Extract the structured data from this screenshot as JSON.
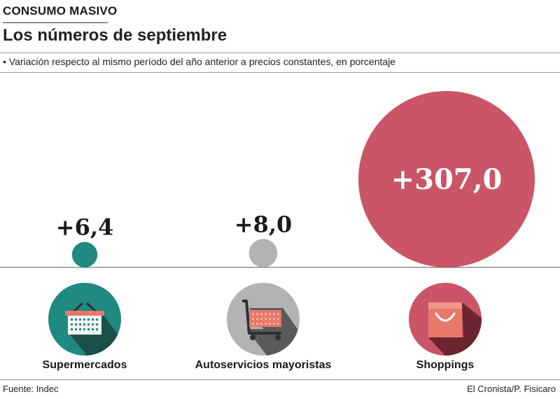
{
  "header": {
    "kicker": "CONSUMO MASIVO",
    "title": "Los números de septiembre",
    "subtitle": "• Variación respecto al mismo período del año anterior a precios constantes, en porcentaje"
  },
  "footer": {
    "source": "Fuente: Indec",
    "credit": "El Cronista/P. Fisicaro"
  },
  "colors": {
    "supermercados": "#1f8a80",
    "autoservicios": "#b3b3b3",
    "shoppings": "#c95566",
    "shadow": "#4a4a4a"
  },
  "chart_data": {
    "type": "bubble",
    "title": "Los números de septiembre",
    "subtitle": "Variación respecto al mismo período del año anterior a precios constantes, en porcentaje",
    "categories": [
      "Supermercados",
      "Autoservicios mayoristas",
      "Shoppings"
    ],
    "values": [
      6.4,
      8.0,
      307.0
    ],
    "value_labels": [
      "+6,4",
      "+8,0",
      "+307,0"
    ],
    "icons": [
      "basket-icon",
      "cart-icon",
      "shopping-bag-icon"
    ]
  }
}
